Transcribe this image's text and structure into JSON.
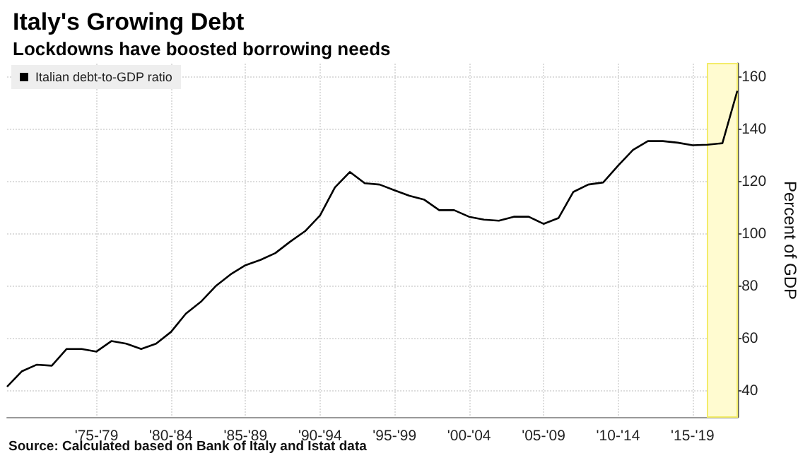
{
  "chart_data": {
    "type": "line",
    "title": "Italy's Growing Debt",
    "subtitle": "Lockdowns have boosted borrowing needs",
    "ylabel": "Percent of GDP",
    "annotations": [
      "Source: Calculated based on Bank of Italy and Istat data"
    ],
    "categories": [
      null,
      null,
      null,
      null,
      null,
      null,
      "'75-'79",
      null,
      null,
      null,
      null,
      "'80-'84",
      null,
      null,
      null,
      null,
      "'85-'89",
      null,
      null,
      null,
      null,
      "'90-'94",
      null,
      null,
      null,
      null,
      "'95-'99",
      null,
      null,
      null,
      null,
      "'00-'04",
      null,
      null,
      null,
      null,
      "'05-'09",
      null,
      null,
      null,
      null,
      "'10-'14",
      null,
      null,
      null,
      null,
      "'15-'19",
      null,
      null,
      null
    ],
    "series": [
      {
        "name": "Italian debt-to-GDP ratio",
        "color": "#000000",
        "values": [
          41.6,
          47.5,
          50,
          49.6,
          56,
          56,
          55,
          59,
          58,
          56,
          58,
          62.5,
          69.5,
          74,
          80,
          84.5,
          88,
          90,
          92.6,
          97,
          101,
          107,
          117.7,
          123.6,
          119.3,
          118.8,
          116.6,
          114.5,
          113,
          109,
          109,
          106.5,
          105.4,
          105,
          106.5,
          106.5,
          103.8,
          106,
          116,
          118.8,
          119.6,
          126,
          132,
          135.4,
          135.4,
          134.8,
          133.8,
          134,
          134.6,
          154.6
        ]
      }
    ],
    "ylim": [
      30,
      165
    ],
    "yticks": [
      40,
      60,
      80,
      100,
      120,
      140,
      160
    ],
    "grid": true,
    "legend": "top left",
    "marker": "none",
    "line_style": "solid"
  }
}
